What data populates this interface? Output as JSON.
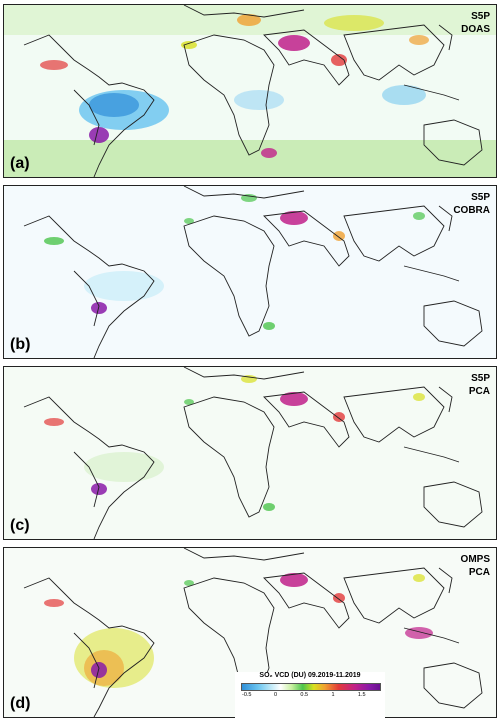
{
  "panels": [
    {
      "label": "(a)",
      "title_line1": "S5P",
      "title_line2": "DOAS"
    },
    {
      "label": "(b)",
      "title_line1": "S5P",
      "title_line2": "COBRA"
    },
    {
      "label": "(c)",
      "title_line1": "S5P",
      "title_line2": "PCA"
    },
    {
      "label": "(d)",
      "title_line1": "OMPS",
      "title_line2": "PCA"
    }
  ],
  "colorbar": {
    "title": "SO₂ VCD (DU) 09.2019-11.2019",
    "ticks": [
      "-0.5",
      "0",
      "0.5",
      "1",
      "1.5"
    ],
    "tick_values": [
      -0.5,
      0,
      0.5,
      1,
      1.5
    ],
    "range": [
      -0.6,
      1.8
    ]
  },
  "colors": {
    "negative": "#6ec6f0",
    "low": "#4cc44c",
    "mid": "#e23a3a",
    "high": "#8a1aa8",
    "coast": "#222222"
  }
}
